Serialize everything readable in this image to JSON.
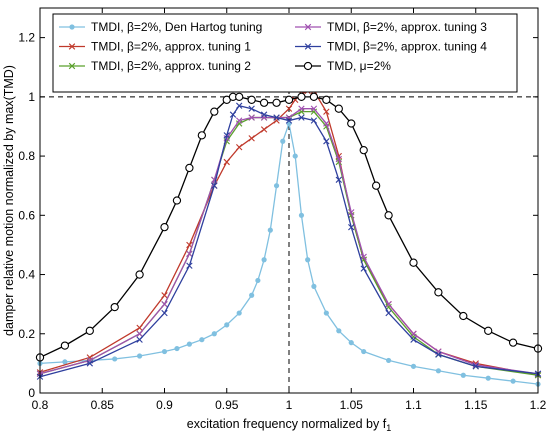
{
  "chart_data": {
    "type": "line",
    "title": "",
    "xlabel": "excitation frequency normalized by f",
    "xlabel_sub": "1",
    "ylabel": "damper relative motion normalized by max(TMD)",
    "xlim": [
      0.8,
      1.2
    ],
    "ylim": [
      0,
      1.3
    ],
    "xticks": [
      0.8,
      0.85,
      0.9,
      0.95,
      1,
      1.05,
      1.1,
      1.15,
      1.2
    ],
    "xtick_labels": [
      "0.8",
      "0.85",
      "0.9",
      "0.95",
      "1",
      "1.05",
      "1.1",
      "1.15",
      "1.2"
    ],
    "yticks": [
      0,
      0.2,
      0.4,
      0.6,
      0.8,
      1,
      1.2
    ],
    "ytick_labels": [
      "0",
      "0.2",
      "0.4",
      "0.6",
      "0.8",
      "1",
      "1.2"
    ],
    "grid": false,
    "legend_position": "top",
    "reference_lines": {
      "y": 1,
      "x": 1,
      "style": "dashed"
    },
    "series": [
      {
        "name": "TMDI, β=2%, Den Hartog tuning",
        "color": "#80c0e0",
        "marker": "dot",
        "x": [
          0.8,
          0.82,
          0.84,
          0.86,
          0.88,
          0.9,
          0.91,
          0.92,
          0.93,
          0.94,
          0.95,
          0.96,
          0.97,
          0.975,
          0.98,
          0.985,
          0.99,
          0.995,
          1.0,
          1.005,
          1.01,
          1.015,
          1.02,
          1.03,
          1.04,
          1.05,
          1.06,
          1.08,
          1.1,
          1.12,
          1.14,
          1.16,
          1.18,
          1.2
        ],
        "y": [
          0.1,
          0.105,
          0.11,
          0.115,
          0.125,
          0.14,
          0.15,
          0.165,
          0.18,
          0.2,
          0.23,
          0.27,
          0.33,
          0.38,
          0.45,
          0.55,
          0.7,
          0.85,
          0.91,
          0.8,
          0.6,
          0.45,
          0.36,
          0.27,
          0.21,
          0.17,
          0.14,
          0.11,
          0.09,
          0.075,
          0.06,
          0.05,
          0.04,
          0.03
        ]
      },
      {
        "name": "TMDI, β=2%, approx. tuning 1",
        "color": "#c0392b",
        "marker": "x",
        "x": [
          0.8,
          0.84,
          0.88,
          0.9,
          0.92,
          0.94,
          0.95,
          0.96,
          0.97,
          0.98,
          0.99,
          1.0,
          1.005,
          1.01,
          1.015,
          1.02,
          1.03,
          1.04,
          1.05,
          1.06,
          1.08,
          1.1,
          1.12,
          1.15,
          1.2
        ],
        "y": [
          0.07,
          0.12,
          0.22,
          0.33,
          0.5,
          0.7,
          0.78,
          0.83,
          0.86,
          0.89,
          0.92,
          0.96,
          0.99,
          1.01,
          1.02,
          1.02,
          0.95,
          0.8,
          0.6,
          0.45,
          0.3,
          0.2,
          0.14,
          0.1,
          0.06
        ]
      },
      {
        "name": "TMDI, β=2%, approx. tuning 2",
        "color": "#5aa02c",
        "marker": "x",
        "x": [
          0.8,
          0.84,
          0.88,
          0.9,
          0.92,
          0.94,
          0.95,
          0.96,
          0.97,
          0.98,
          0.99,
          1.0,
          1.01,
          1.02,
          1.03,
          1.04,
          1.05,
          1.06,
          1.08,
          1.1,
          1.12,
          1.15,
          1.2
        ],
        "y": [
          0.065,
          0.11,
          0.2,
          0.3,
          0.47,
          0.72,
          0.85,
          0.91,
          0.93,
          0.93,
          0.93,
          0.93,
          0.95,
          0.95,
          0.9,
          0.78,
          0.6,
          0.45,
          0.29,
          0.19,
          0.13,
          0.09,
          0.06
        ]
      },
      {
        "name": "TMDI, β=2%, approx. tuning 3",
        "color": "#a050b0",
        "marker": "x",
        "x": [
          0.8,
          0.84,
          0.88,
          0.9,
          0.92,
          0.94,
          0.95,
          0.96,
          0.97,
          0.98,
          0.99,
          1.0,
          1.01,
          1.02,
          1.03,
          1.04,
          1.05,
          1.06,
          1.08,
          1.1,
          1.12,
          1.15,
          1.2
        ],
        "y": [
          0.065,
          0.11,
          0.2,
          0.3,
          0.47,
          0.72,
          0.86,
          0.92,
          0.93,
          0.93,
          0.93,
          0.93,
          0.96,
          0.96,
          0.91,
          0.79,
          0.61,
          0.46,
          0.3,
          0.2,
          0.14,
          0.095,
          0.065
        ]
      },
      {
        "name": "TMDI, β=2%, approx. tuning 4",
        "color": "#2e3f9e",
        "marker": "x",
        "x": [
          0.8,
          0.84,
          0.88,
          0.9,
          0.92,
          0.94,
          0.95,
          0.955,
          0.96,
          0.97,
          0.98,
          0.99,
          1.0,
          1.01,
          1.02,
          1.03,
          1.04,
          1.05,
          1.06,
          1.08,
          1.1,
          1.12,
          1.15,
          1.2
        ],
        "y": [
          0.055,
          0.1,
          0.18,
          0.27,
          0.43,
          0.7,
          0.87,
          0.94,
          0.97,
          0.96,
          0.94,
          0.93,
          0.92,
          0.93,
          0.92,
          0.85,
          0.72,
          0.56,
          0.42,
          0.27,
          0.18,
          0.13,
          0.09,
          0.065
        ]
      },
      {
        "name": "TMD, μ=2%",
        "color": "#000000",
        "marker": "circle",
        "x": [
          0.8,
          0.82,
          0.84,
          0.86,
          0.88,
          0.9,
          0.91,
          0.92,
          0.93,
          0.94,
          0.95,
          0.955,
          0.96,
          0.97,
          0.98,
          0.99,
          1.0,
          1.01,
          1.02,
          1.03,
          1.04,
          1.05,
          1.06,
          1.07,
          1.08,
          1.1,
          1.12,
          1.14,
          1.16,
          1.18,
          1.2
        ],
        "y": [
          0.12,
          0.16,
          0.21,
          0.29,
          0.4,
          0.56,
          0.65,
          0.76,
          0.87,
          0.95,
          0.99,
          1.0,
          1.0,
          0.99,
          0.98,
          0.98,
          0.99,
          1.0,
          1.0,
          0.99,
          0.96,
          0.91,
          0.82,
          0.7,
          0.6,
          0.44,
          0.34,
          0.26,
          0.21,
          0.17,
          0.15
        ]
      }
    ]
  }
}
